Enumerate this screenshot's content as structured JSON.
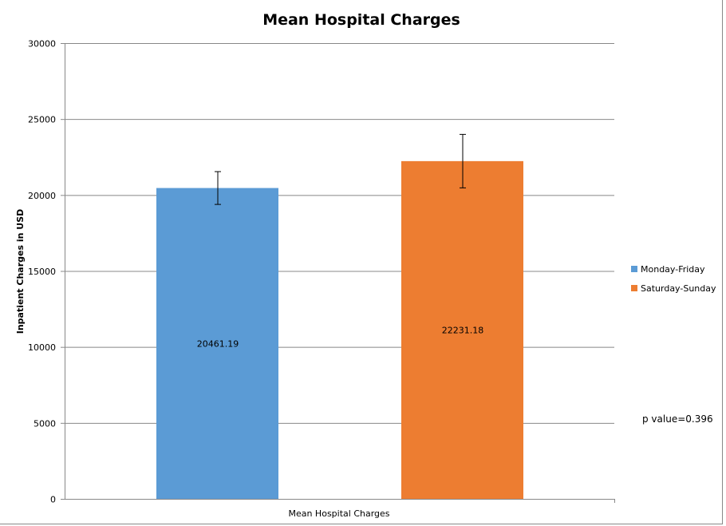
{
  "chart_data": {
    "type": "bar",
    "title": "Mean Hospital Charges",
    "xlabel": "Mean Hospital Charges",
    "ylabel": "Inpatient Charges in USD",
    "ylim": [
      0,
      30000
    ],
    "yticks": [
      0,
      5000,
      10000,
      15000,
      20000,
      25000,
      30000
    ],
    "ytick_labels": [
      "0",
      "5000",
      "10000",
      "15000",
      "20000",
      "25000",
      "30000"
    ],
    "grid": true,
    "legend_position": "right",
    "categories": [
      "Mean Hospital Charges"
    ],
    "series": [
      {
        "name": "Monday-Friday",
        "values": [
          20461.19
        ],
        "label": "20461.19",
        "error": 1080,
        "color": "#5b9bd5"
      },
      {
        "name": "Saturday-Sunday",
        "values": [
          22231.18
        ],
        "label": "22231.18",
        "error": 1760,
        "color": "#ed7d31"
      }
    ],
    "annotation": "p value=0.396"
  }
}
